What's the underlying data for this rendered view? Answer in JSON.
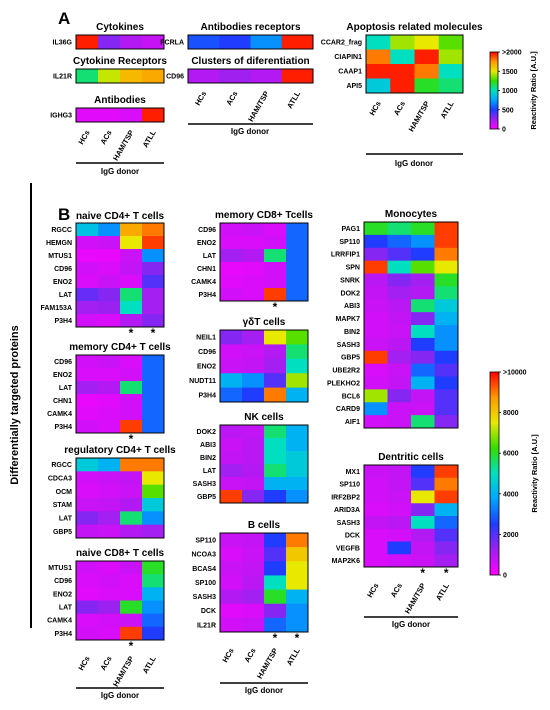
{
  "panels": {
    "a": "A",
    "b": "B"
  },
  "side_label": "Differentially targeted proteins",
  "colors": {
    "scale_stops": [
      "#ff00ff",
      "#a020f0",
      "#1f3cff",
      "#00a6ff",
      "#00e0c0",
      "#33dd00",
      "#e8e800",
      "#ff9900",
      "#ff0000"
    ]
  },
  "chart_data": [
    {
      "type": "heatmap",
      "title": "Cytokines",
      "categories": [
        "HCs",
        "ACs",
        "HAM/TSP",
        "ATLL"
      ],
      "xlabel": "IgG donor",
      "rows": [
        "IL36G"
      ],
      "scale_max": 2000,
      "values": [
        [
          1950,
          300,
          200,
          150
        ]
      ]
    },
    {
      "type": "heatmap",
      "title": "Cytokine Receptors",
      "categories": [
        "HCs",
        "ACs",
        "HAM/TSP",
        "ATLL"
      ],
      "xlabel": "IgG donor",
      "rows": [
        "IL21R"
      ],
      "scale_max": 2000,
      "values": [
        [
          1100,
          1450,
          1650,
          1700
        ]
      ]
    },
    {
      "type": "heatmap",
      "title": "Antibodies",
      "categories": [
        "HCs",
        "ACs",
        "HAM/TSP",
        "ATLL"
      ],
      "xlabel": "IgG donor",
      "rows": [
        "IGHG3"
      ],
      "scale_max": 2000,
      "values": [
        [
          80,
          80,
          100,
          1950
        ]
      ]
    },
    {
      "type": "heatmap",
      "title": "Antibodies receptors",
      "categories": [
        "HCs",
        "ACs",
        "HAM/TSP",
        "ATLL"
      ],
      "xlabel": "IgG donor",
      "rows": [
        "FCRLA"
      ],
      "scale_max": 2000,
      "values": [
        [
          550,
          500,
          700,
          1950
        ]
      ]
    },
    {
      "type": "heatmap",
      "title": "Clusters of diferentiation",
      "categories": [
        "HCs",
        "ACs",
        "HAM/TSP",
        "ATLL"
      ],
      "xlabel": "IgG donor",
      "rows": [
        "CD96"
      ],
      "scale_max": 2000,
      "values": [
        [
          200,
          250,
          200,
          1950
        ]
      ]
    },
    {
      "type": "heatmap",
      "title": "Apoptosis related molecules",
      "categories": [
        "HCs",
        "ACs",
        "HAM/TSP",
        "ATLL"
      ],
      "xlabel": "IgG donor",
      "rows": [
        "CCAR2_frag",
        "CIAPIN1",
        "CAAP1",
        "API5"
      ],
      "scale_max": 2000,
      "values": [
        [
          1000,
          1400,
          1500,
          1300
        ],
        [
          1800,
          1000,
          1950,
          1400
        ],
        [
          1950,
          1950,
          1800,
          1000
        ],
        [
          900,
          1950,
          1200,
          1100
        ]
      ]
    },
    {
      "type": "heatmap",
      "title": "naive CD4+ T cells",
      "categories": [
        "HCs",
        "ACs",
        "HAM/TSP",
        "ATLL"
      ],
      "xlabel": "IgG donor",
      "rows": [
        "RGCC",
        "HEMGN",
        "MTUS1",
        "CD96",
        "ENO2",
        "LAT",
        "FAM153A",
        "P3H4"
      ],
      "scale_max": 10000,
      "values": [
        [
          4300,
          3500,
          8500,
          9000
        ],
        [
          600,
          700,
          7500,
          9500
        ],
        [
          300,
          300,
          700,
          3500
        ],
        [
          600,
          500,
          800,
          1500
        ],
        [
          500,
          700,
          500,
          2000
        ],
        [
          1800,
          1500,
          5500,
          1200
        ],
        [
          1200,
          1300,
          5000,
          1200
        ],
        [
          600,
          500,
          1000,
          1500
        ]
      ],
      "stars": [
        false,
        false,
        true,
        true
      ]
    },
    {
      "type": "heatmap",
      "title": "memory CD4+ T cells",
      "categories": [
        "HCs",
        "ACs",
        "HAM/TSP",
        "ATLL"
      ],
      "xlabel": "IgG donor",
      "rows": [
        "CD96",
        "ENO2",
        "LAT",
        "CHN1",
        "CAMK4",
        "P3H4"
      ],
      "scale_max": 10000,
      "values": [
        [
          600,
          700,
          500,
          3000
        ],
        [
          500,
          500,
          600,
          3000
        ],
        [
          1200,
          1000,
          5500,
          3000
        ],
        [
          300,
          400,
          600,
          3000
        ],
        [
          400,
          500,
          600,
          3000
        ],
        [
          600,
          500,
          9500,
          3000
        ]
      ],
      "stars": [
        false,
        false,
        true,
        false
      ]
    },
    {
      "type": "heatmap",
      "title": "regulatory CD4+ T cells",
      "categories": [
        "HCs",
        "ACs",
        "HAM/TSP",
        "ATLL"
      ],
      "xlabel": "IgG donor",
      "rows": [
        "RGCC",
        "CDCA3",
        "OCM",
        "STAM",
        "LAT",
        "GBP5"
      ],
      "scale_max": 10000,
      "values": [
        [
          4500,
          4000,
          9000,
          9000
        ],
        [
          600,
          700,
          800,
          7500
        ],
        [
          500,
          600,
          700,
          6500
        ],
        [
          700,
          800,
          1000,
          4500
        ],
        [
          1500,
          1200,
          5500,
          3500
        ],
        [
          800,
          700,
          1000,
          1200
        ]
      ]
    },
    {
      "type": "heatmap",
      "title": "naive CD8+ T cells",
      "categories": [
        "HCs",
        "ACs",
        "HAM/TSP",
        "ATLL"
      ],
      "xlabel": "IgG donor",
      "rows": [
        "MTUS1",
        "CD96",
        "ENO2",
        "LAT",
        "CAMK4",
        "P3H4"
      ],
      "scale_max": 10000,
      "values": [
        [
          600,
          500,
          700,
          6000
        ],
        [
          500,
          600,
          500,
          5500
        ],
        [
          400,
          500,
          500,
          4000
        ],
        [
          1500,
          1300,
          6000,
          3500
        ],
        [
          500,
          600,
          700,
          3000
        ],
        [
          600,
          500,
          9500,
          2500
        ]
      ],
      "stars": [
        false,
        false,
        true,
        false
      ]
    },
    {
      "type": "heatmap",
      "title": "memory CD8+ Tcells",
      "categories": [
        "HCs",
        "ACs",
        "HAM/TSP",
        "ATLL"
      ],
      "xlabel": "IgG donor",
      "rows": [
        "CD96",
        "ENO2",
        "LAT",
        "CHN1",
        "CAMK4",
        "P3H4"
      ],
      "scale_max": 10000,
      "values": [
        [
          600,
          700,
          500,
          3000
        ],
        [
          500,
          500,
          600,
          3000
        ],
        [
          1200,
          1000,
          5500,
          3000
        ],
        [
          300,
          400,
          600,
          3000
        ],
        [
          400,
          500,
          600,
          3000
        ],
        [
          600,
          500,
          9500,
          3000
        ]
      ],
      "stars": [
        false,
        false,
        true,
        false
      ]
    },
    {
      "type": "heatmap",
      "title": "γδT cells",
      "categories": [
        "HCs",
        "ACs",
        "HAM/TSP",
        "ATLL"
      ],
      "xlabel": "IgG donor",
      "rows": [
        "NEIL1",
        "CD96",
        "ENO2",
        "NUDT11",
        "P3H4"
      ],
      "scale_max": 10000,
      "values": [
        [
          1500,
          1200,
          7500,
          6500
        ],
        [
          600,
          700,
          1000,
          5500
        ],
        [
          700,
          800,
          1200,
          5000
        ],
        [
          4000,
          3500,
          2000,
          7000
        ],
        [
          3000,
          2500,
          9000,
          4000
        ]
      ]
    },
    {
      "type": "heatmap",
      "title": "NK cells",
      "categories": [
        "HCs",
        "ACs",
        "HAM/TSP",
        "ATLL"
      ],
      "xlabel": "IgG donor",
      "rows": [
        "DOK2",
        "ABI3",
        "BIN2",
        "LAT",
        "SASH3",
        "GBP5"
      ],
      "scale_max": 10000,
      "values": [
        [
          900,
          800,
          5500,
          4000
        ],
        [
          700,
          900,
          5000,
          4000
        ],
        [
          800,
          900,
          5000,
          4500
        ],
        [
          1200,
          1000,
          5500,
          4500
        ],
        [
          700,
          800,
          4000,
          4000
        ],
        [
          9500,
          1500,
          2500,
          3500
        ]
      ]
    },
    {
      "type": "heatmap",
      "title": "B cells",
      "categories": [
        "HCs",
        "ACs",
        "HAM/TSP",
        "ATLL"
      ],
      "xlabel": "IgG donor",
      "rows": [
        "SP110",
        "NCOA3",
        "BCAS4",
        "SP100",
        "SASH3",
        "DCK",
        "IL21R"
      ],
      "scale_max": 10000,
      "values": [
        [
          700,
          800,
          2500,
          9000
        ],
        [
          500,
          700,
          2000,
          8000
        ],
        [
          700,
          800,
          2500,
          7500
        ],
        [
          600,
          900,
          5000,
          7500
        ],
        [
          1000,
          1200,
          6000,
          4000
        ],
        [
          400,
          500,
          1500,
          3500
        ],
        [
          600,
          700,
          3000,
          3500
        ]
      ],
      "stars": [
        false,
        false,
        true,
        true
      ]
    },
    {
      "type": "heatmap",
      "title": "Monocytes",
      "categories": [
        "HCs",
        "ACs",
        "HAM/TSP",
        "ATLL"
      ],
      "xlabel": "IgG donor",
      "rows": [
        "PAG1",
        "SP110",
        "LRRFIP1",
        "SPN",
        "SNRK",
        "DOK2",
        "ABI3",
        "MAPK7",
        "BIN2",
        "SASH3",
        "GBP5",
        "UBE2R2",
        "PLEKHO2",
        "BCL6",
        "CARD9",
        "AIF1"
      ],
      "scale_max": 10000,
      "values": [
        [
          6000,
          5500,
          6000,
          9500
        ],
        [
          2500,
          3000,
          3500,
          9500
        ],
        [
          1500,
          2000,
          2500,
          9000
        ],
        [
          9500,
          5000,
          6500,
          7500
        ],
        [
          900,
          1500,
          1200,
          6000
        ],
        [
          800,
          1200,
          1000,
          5500
        ],
        [
          700,
          900,
          5500,
          4500
        ],
        [
          600,
          800,
          1500,
          4000
        ],
        [
          600,
          700,
          5000,
          3500
        ],
        [
          700,
          900,
          2500,
          3500
        ],
        [
          9500,
          1200,
          1500,
          2500
        ],
        [
          500,
          700,
          3000,
          2000
        ],
        [
          600,
          800,
          4000,
          2500
        ],
        [
          7000,
          1500,
          800,
          2000
        ],
        [
          3500,
          700,
          700,
          2000
        ],
        [
          600,
          700,
          5500,
          1500
        ]
      ]
    },
    {
      "type": "heatmap",
      "title": "Dentritic cells",
      "categories": [
        "HCs",
        "ACs",
        "HAM/TSP",
        "ATLL"
      ],
      "xlabel": "IgG donor",
      "rows": [
        "MX1",
        "SP110",
        "IRF2BP2",
        "ARID3A",
        "SASH3",
        "DCK",
        "VEGFB",
        "MAP2K6"
      ],
      "scale_max": 10000,
      "values": [
        [
          700,
          800,
          2500,
          9500
        ],
        [
          600,
          800,
          2000,
          9000
        ],
        [
          600,
          700,
          7500,
          9500
        ],
        [
          500,
          600,
          1500,
          4000
        ],
        [
          800,
          900,
          5000,
          3000
        ],
        [
          500,
          600,
          1000,
          2000
        ],
        [
          500,
          2500,
          800,
          1500
        ],
        [
          500,
          600,
          700,
          1200
        ]
      ],
      "stars": [
        false,
        false,
        true,
        true
      ]
    },
    {
      "type": "colorbar",
      "label": "Reactivity Ratio [A.U.]",
      "ticks": [
        ">2000",
        "1500",
        "1000",
        "500",
        "0"
      ],
      "range": [
        0,
        2000
      ]
    },
    {
      "type": "colorbar",
      "label": "Reactivity Ratio [A.U.]",
      "ticks": [
        ">10000",
        "8000",
        "6000",
        "4000",
        "2000",
        "0"
      ],
      "range": [
        0,
        10000
      ]
    }
  ]
}
